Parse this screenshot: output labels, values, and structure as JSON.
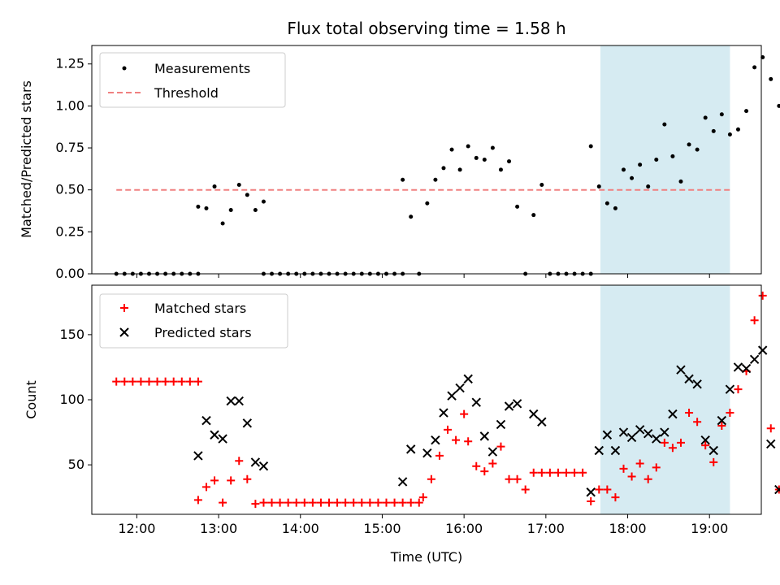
{
  "chart_data": [
    {
      "type": "scatter",
      "title": "Flux total observing time = 1.58 h",
      "xlabel": "",
      "ylabel": "Matched/Predicted stars",
      "ylim": [
        0,
        1.36
      ],
      "yticks": [
        "0.00",
        "0.25",
        "0.50",
        "0.75",
        "1.00",
        "1.25"
      ],
      "ytick_values": [
        0,
        0.25,
        0.5,
        0.75,
        1.0,
        1.25
      ],
      "legend": {
        "position": "top-left",
        "entries": [
          "Measurements",
          "Threshold"
        ]
      },
      "threshold": {
        "name": "Threshold",
        "value": 0.5,
        "x_range": [
          "11:45",
          "19:15"
        ],
        "color": "#f08080"
      },
      "highlight_span": [
        "17:40",
        "19:15"
      ],
      "series": [
        {
          "name": "Measurements",
          "color": "#000000",
          "points": [
            [
              "11:45",
              0
            ],
            [
              "11:51",
              0
            ],
            [
              "11:57",
              0
            ],
            [
              "12:03",
              0
            ],
            [
              "12:09",
              0
            ],
            [
              "12:15",
              0
            ],
            [
              "12:21",
              0
            ],
            [
              "12:27",
              0
            ],
            [
              "12:33",
              0
            ],
            [
              "12:39",
              0
            ],
            [
              "12:45",
              0
            ],
            [
              "12:45",
              0.4
            ],
            [
              "12:51",
              0.39
            ],
            [
              "12:57",
              0.52
            ],
            [
              "13:03",
              0.3
            ],
            [
              "13:09",
              0.38
            ],
            [
              "13:15",
              0.53
            ],
            [
              "13:21",
              0.47
            ],
            [
              "13:27",
              0.38
            ],
            [
              "13:33",
              0.43
            ],
            [
              "13:33",
              0
            ],
            [
              "13:39",
              0
            ],
            [
              "13:45",
              0
            ],
            [
              "13:51",
              0
            ],
            [
              "13:57",
              0
            ],
            [
              "14:03",
              0
            ],
            [
              "14:09",
              0
            ],
            [
              "14:15",
              0
            ],
            [
              "14:21",
              0
            ],
            [
              "14:27",
              0
            ],
            [
              "14:33",
              0
            ],
            [
              "14:39",
              0
            ],
            [
              "14:45",
              0
            ],
            [
              "14:51",
              0
            ],
            [
              "14:57",
              0
            ],
            [
              "15:03",
              0
            ],
            [
              "15:09",
              0
            ],
            [
              "15:15",
              0
            ],
            [
              "15:15",
              0.56
            ],
            [
              "15:21",
              0.34
            ],
            [
              "15:27",
              0
            ],
            [
              "15:33",
              0.42
            ],
            [
              "15:39",
              0.56
            ],
            [
              "15:45",
              0.63
            ],
            [
              "15:51",
              0.74
            ],
            [
              "15:57",
              0.62
            ],
            [
              "16:03",
              0.76
            ],
            [
              "16:09",
              0.69
            ],
            [
              "16:15",
              0.68
            ],
            [
              "16:21",
              0.75
            ],
            [
              "16:27",
              0.62
            ],
            [
              "16:33",
              0.67
            ],
            [
              "16:39",
              0.4
            ],
            [
              "16:45",
              0
            ],
            [
              "16:51",
              0.35
            ],
            [
              "16:57",
              0.53
            ],
            [
              "17:03",
              0
            ],
            [
              "17:09",
              0
            ],
            [
              "17:15",
              0
            ],
            [
              "17:21",
              0
            ],
            [
              "17:27",
              0
            ],
            [
              "17:33",
              0
            ],
            [
              "17:33",
              0.76
            ],
            [
              "17:39",
              0.52
            ],
            [
              "17:45",
              0.42
            ],
            [
              "17:51",
              0.39
            ],
            [
              "17:57",
              0.62
            ],
            [
              "18:03",
              0.57
            ],
            [
              "18:09",
              0.65
            ],
            [
              "18:15",
              0.52
            ],
            [
              "18:21",
              0.68
            ],
            [
              "18:27",
              0.89
            ],
            [
              "18:33",
              0.7
            ],
            [
              "18:39",
              0.55
            ],
            [
              "18:45",
              0.77
            ],
            [
              "18:51",
              0.74
            ],
            [
              "18:57",
              0.93
            ],
            [
              "19:03",
              0.85
            ],
            [
              "19:09",
              0.95
            ],
            [
              "19:15",
              0.83
            ],
            [
              "19:21",
              0.86
            ],
            [
              "19:27",
              0.97
            ],
            [
              "19:33",
              1.23
            ],
            [
              "19:39",
              1.29
            ],
            [
              "19:45",
              1.16
            ],
            [
              "19:51",
              1.0
            ]
          ]
        }
      ]
    },
    {
      "type": "scatter",
      "title": "",
      "xlabel": "Time (UTC)",
      "ylabel": "Count",
      "ylim": [
        12,
        188
      ],
      "yticks": [
        "50",
        "100",
        "150"
      ],
      "ytick_values": [
        50,
        100,
        150
      ],
      "xticks": [
        "12:00",
        "13:00",
        "14:00",
        "15:00",
        "16:00",
        "17:00",
        "18:00",
        "19:00"
      ],
      "xlim": [
        "11:27",
        "19:38"
      ],
      "legend": {
        "position": "top-left",
        "entries": [
          "Matched stars",
          "Predicted stars"
        ]
      },
      "highlight_span": [
        "17:40",
        "19:15"
      ],
      "series": [
        {
          "name": "Matched stars",
          "marker": "plus",
          "color": "#ff0000",
          "points": [
            [
              "11:45",
              114
            ],
            [
              "11:51",
              114
            ],
            [
              "11:57",
              114
            ],
            [
              "12:03",
              114
            ],
            [
              "12:09",
              114
            ],
            [
              "12:15",
              114
            ],
            [
              "12:21",
              114
            ],
            [
              "12:27",
              114
            ],
            [
              "12:33",
              114
            ],
            [
              "12:39",
              114
            ],
            [
              "12:45",
              114
            ],
            [
              "12:45",
              23
            ],
            [
              "12:51",
              33
            ],
            [
              "12:57",
              38
            ],
            [
              "13:03",
              21
            ],
            [
              "13:09",
              38
            ],
            [
              "13:15",
              53
            ],
            [
              "13:21",
              39
            ],
            [
              "13:27",
              20
            ],
            [
              "13:33",
              21
            ],
            [
              "13:39",
              21
            ],
            [
              "13:45",
              21
            ],
            [
              "13:51",
              21
            ],
            [
              "13:57",
              21
            ],
            [
              "14:03",
              21
            ],
            [
              "14:09",
              21
            ],
            [
              "14:15",
              21
            ],
            [
              "14:21",
              21
            ],
            [
              "14:27",
              21
            ],
            [
              "14:33",
              21
            ],
            [
              "14:39",
              21
            ],
            [
              "14:45",
              21
            ],
            [
              "14:51",
              21
            ],
            [
              "14:57",
              21
            ],
            [
              "15:03",
              21
            ],
            [
              "15:09",
              21
            ],
            [
              "15:15",
              21
            ],
            [
              "15:21",
              21
            ],
            [
              "15:27",
              21
            ],
            [
              "15:30",
              25
            ],
            [
              "15:36",
              39
            ],
            [
              "15:42",
              57
            ],
            [
              "15:48",
              77
            ],
            [
              "15:54",
              69
            ],
            [
              "16:00",
              89
            ],
            [
              "16:03",
              68
            ],
            [
              "16:09",
              49
            ],
            [
              "16:15",
              45
            ],
            [
              "16:21",
              51
            ],
            [
              "16:27",
              64
            ],
            [
              "16:33",
              39
            ],
            [
              "16:39",
              39
            ],
            [
              "16:45",
              31
            ],
            [
              "16:51",
              44
            ],
            [
              "16:57",
              44
            ],
            [
              "17:03",
              44
            ],
            [
              "17:09",
              44
            ],
            [
              "17:15",
              44
            ],
            [
              "17:21",
              44
            ],
            [
              "17:27",
              44
            ],
            [
              "17:33",
              22
            ],
            [
              "17:39",
              31
            ],
            [
              "17:45",
              31
            ],
            [
              "17:51",
              25
            ],
            [
              "17:57",
              47
            ],
            [
              "18:03",
              41
            ],
            [
              "18:09",
              51
            ],
            [
              "18:15",
              39
            ],
            [
              "18:21",
              48
            ],
            [
              "18:27",
              67
            ],
            [
              "18:33",
              63
            ],
            [
              "18:39",
              67
            ],
            [
              "18:45",
              90
            ],
            [
              "18:51",
              83
            ],
            [
              "18:57",
              65
            ],
            [
              "19:03",
              52
            ],
            [
              "19:09",
              80
            ],
            [
              "19:15",
              90
            ],
            [
              "19:21",
              108
            ],
            [
              "19:27",
              122
            ],
            [
              "19:33",
              161
            ],
            [
              "19:39",
              180
            ],
            [
              "19:45",
              78
            ],
            [
              "19:51",
              31
            ]
          ]
        },
        {
          "name": "Predicted stars",
          "marker": "x",
          "color": "#000000",
          "points": [
            [
              "12:45",
              57
            ],
            [
              "12:51",
              84
            ],
            [
              "12:57",
              73
            ],
            [
              "13:03",
              70
            ],
            [
              "13:09",
              99
            ],
            [
              "13:15",
              99
            ],
            [
              "13:21",
              82
            ],
            [
              "13:27",
              52
            ],
            [
              "13:33",
              49
            ],
            [
              "15:15",
              37
            ],
            [
              "15:21",
              62
            ],
            [
              "15:33",
              59
            ],
            [
              "15:39",
              69
            ],
            [
              "15:45",
              90
            ],
            [
              "15:51",
              103
            ],
            [
              "15:57",
              109
            ],
            [
              "16:03",
              116
            ],
            [
              "16:09",
              98
            ],
            [
              "16:15",
              72
            ],
            [
              "16:21",
              60
            ],
            [
              "16:27",
              81
            ],
            [
              "16:33",
              95
            ],
            [
              "16:39",
              97
            ],
            [
              "16:51",
              89
            ],
            [
              "16:57",
              83
            ],
            [
              "17:33",
              29
            ],
            [
              "17:39",
              61
            ],
            [
              "17:45",
              73
            ],
            [
              "17:51",
              61
            ],
            [
              "17:57",
              75
            ],
            [
              "18:03",
              71
            ],
            [
              "18:09",
              77
            ],
            [
              "18:15",
              74
            ],
            [
              "18:21",
              70
            ],
            [
              "18:27",
              75
            ],
            [
              "18:33",
              89
            ],
            [
              "18:39",
              123
            ],
            [
              "18:45",
              116
            ],
            [
              "18:51",
              112
            ],
            [
              "18:57",
              69
            ],
            [
              "19:03",
              61
            ],
            [
              "19:09",
              84
            ],
            [
              "19:15",
              108
            ],
            [
              "19:21",
              125
            ],
            [
              "19:27",
              124
            ],
            [
              "19:33",
              131
            ],
            [
              "19:39",
              138
            ],
            [
              "19:45",
              66
            ],
            [
              "19:51",
              31
            ]
          ]
        }
      ]
    }
  ]
}
